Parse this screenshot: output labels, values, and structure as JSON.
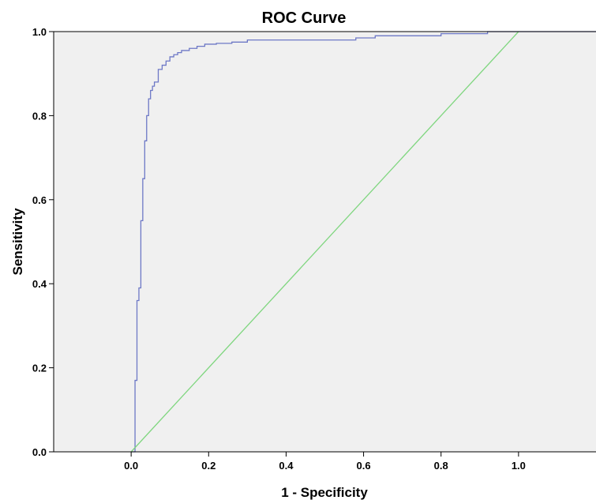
{
  "chart_data": {
    "type": "line",
    "title": "ROC Curve",
    "xlabel": "1 - Specificity",
    "ylabel": "Sensitivity",
    "xlim": [
      -0.2,
      1.2
    ],
    "ylim": [
      0.0,
      1.0
    ],
    "x_ticks": [
      "0.0",
      "0.2",
      "0.4",
      "0.6",
      "0.8",
      "1.0"
    ],
    "y_ticks": [
      "0.0",
      "0.2",
      "0.4",
      "0.6",
      "0.8",
      "1.0"
    ],
    "grid": false,
    "legend": "none",
    "background_color": "#f0f0f0",
    "series": [
      {
        "color": "#6d78c6",
        "interpolation": "step",
        "x": [
          0.0,
          0.01,
          0.01,
          0.015,
          0.015,
          0.02,
          0.02,
          0.025,
          0.025,
          0.03,
          0.03,
          0.035,
          0.035,
          0.04,
          0.04,
          0.045,
          0.045,
          0.05,
          0.05,
          0.055,
          0.055,
          0.06,
          0.06,
          0.07,
          0.07,
          0.08,
          0.08,
          0.09,
          0.09,
          0.1,
          0.1,
          0.11,
          0.11,
          0.12,
          0.12,
          0.13,
          0.13,
          0.15,
          0.15,
          0.17,
          0.17,
          0.19,
          0.19,
          0.22,
          0.22,
          0.26,
          0.26,
          0.3,
          0.3,
          0.58,
          0.58,
          0.63,
          0.63,
          0.8,
          0.8,
          0.92,
          0.92,
          1.2
        ],
        "y": [
          0.0,
          0.0,
          0.17,
          0.17,
          0.36,
          0.36,
          0.39,
          0.39,
          0.55,
          0.55,
          0.65,
          0.65,
          0.74,
          0.74,
          0.8,
          0.8,
          0.84,
          0.84,
          0.86,
          0.86,
          0.87,
          0.87,
          0.88,
          0.88,
          0.91,
          0.91,
          0.92,
          0.92,
          0.93,
          0.93,
          0.94,
          0.94,
          0.945,
          0.945,
          0.95,
          0.95,
          0.955,
          0.955,
          0.96,
          0.96,
          0.965,
          0.965,
          0.97,
          0.97,
          0.972,
          0.972,
          0.975,
          0.975,
          0.98,
          0.98,
          0.985,
          0.985,
          0.99,
          0.99,
          0.995,
          0.995,
          1.0,
          1.0
        ]
      },
      {
        "color": "#7fd67f",
        "interpolation": "linear",
        "x": [
          0.0,
          1.0
        ],
        "y": [
          0.0,
          1.0
        ]
      }
    ]
  }
}
